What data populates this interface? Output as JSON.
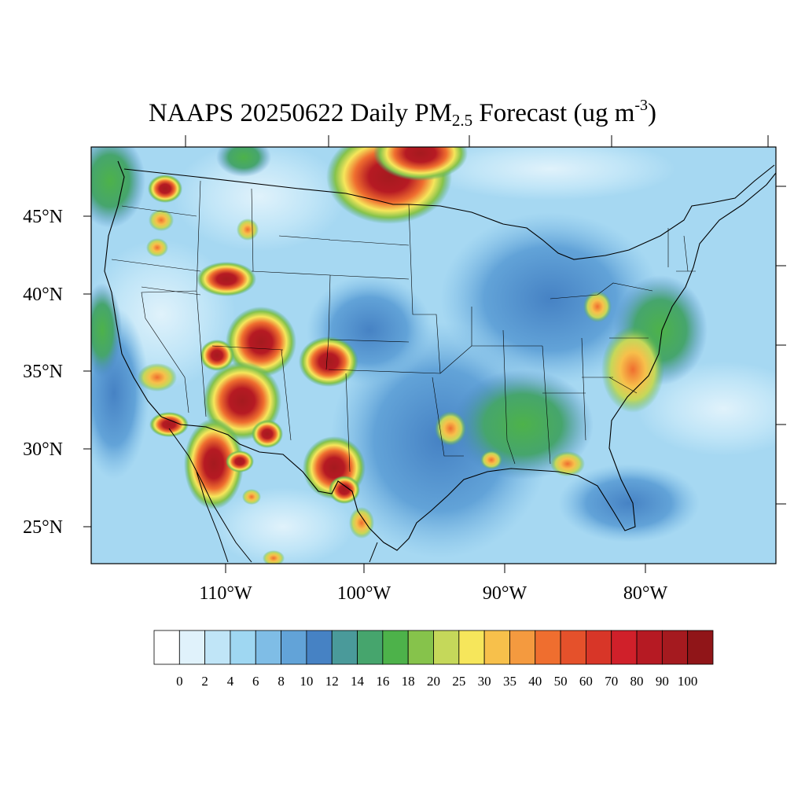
{
  "title": {
    "prefix": "NAAPS 20250622 Daily PM",
    "subscript": "2.5",
    "middle": " Forecast (ug m",
    "superscript": "-3",
    "suffix": ")"
  },
  "map": {
    "region": "Contiguous United States",
    "lat_labels": [
      "45°N",
      "40°N",
      "35°N",
      "30°N",
      "25°N"
    ],
    "lon_labels": [
      "110°W",
      "100°W",
      "90°W",
      "80°W"
    ],
    "background_color": "#a6d8f2",
    "hotspots": [
      {
        "region": "Southern Manitoba / Ontario smoke plume",
        "level": 100
      },
      {
        "region": "Western Montana",
        "level": 90
      },
      {
        "region": "Southern Wyoming",
        "level": 90
      },
      {
        "region": "Western Colorado",
        "level": 100
      },
      {
        "region": "Southern Utah / Northern Arizona",
        "level": 90
      },
      {
        "region": "Southeastern Colorado / Oklahoma panhandle",
        "level": 100
      },
      {
        "region": "Sonora, Mexico",
        "level": 100
      },
      {
        "region": "Chihuahua / Coahuila, Mexico",
        "level": 100
      },
      {
        "region": "Southeastern United States",
        "level": 18
      },
      {
        "region": "Mid-Atlantic coast",
        "level": 20
      }
    ]
  },
  "colorbar": {
    "colors": [
      "#ffffff",
      "#e0f2fb",
      "#c0e5f7",
      "#9fd7f2",
      "#7fbde6",
      "#62a3d8",
      "#4682c4",
      "#4a9a9a",
      "#46a56d",
      "#4db24a",
      "#86c34b",
      "#c5d85a",
      "#f6e65b",
      "#f7c04b",
      "#f49a3f",
      "#ef6e2f",
      "#e5512b",
      "#d83628",
      "#d0202a",
      "#b61a23",
      "#a51a1f",
      "#901518"
    ],
    "labels": [
      "0",
      "2",
      "4",
      "6",
      "8",
      "10",
      "12",
      "14",
      "16",
      "18",
      "20",
      "25",
      "30",
      "35",
      "40",
      "50",
      "60",
      "70",
      "80",
      "90",
      "100"
    ]
  }
}
